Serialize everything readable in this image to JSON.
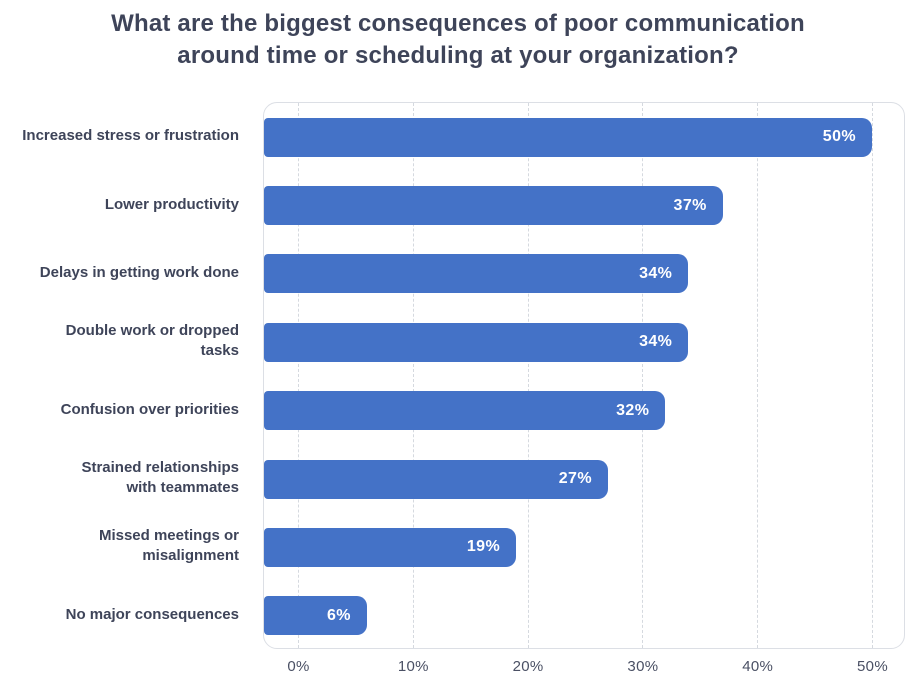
{
  "title": {
    "line1": "What are the biggest consequences of poor communication",
    "line2": "around time or scheduling at your organization?"
  },
  "chart_data": {
    "type": "bar",
    "orientation": "horizontal",
    "title": "What are the biggest consequences of poor communication around time or scheduling at your organization?",
    "categories": [
      "Increased stress or frustration",
      "Lower productivity",
      "Delays in getting work done",
      "Double work or dropped tasks",
      "Confusion over priorities",
      "Strained relationships with teammates",
      "Missed meetings or misalignment",
      "No major consequences"
    ],
    "categories_display": [
      "Increased stress or frustration",
      "Lower productivity",
      "Delays in getting work done",
      "Double work or dropped\ntasks",
      "Confusion over priorities",
      "Strained relationships\nwith teammates",
      "Missed meetings or\nmisalignment",
      "No major consequences"
    ],
    "values": [
      50,
      37,
      34,
      34,
      32,
      27,
      19,
      6
    ],
    "value_labels": [
      "50%",
      "37%",
      "34%",
      "34%",
      "32%",
      "27%",
      "19%",
      "6%"
    ],
    "x_tick_values": [
      0,
      10,
      20,
      30,
      40,
      50
    ],
    "x_tick_labels": [
      "0%",
      "10%",
      "20%",
      "30%",
      "40%",
      "50%"
    ],
    "xlim": [
      0,
      53
    ],
    "ylabel": "",
    "xlabel": "",
    "grid": "vertical-dashed",
    "legend": "none",
    "colors": {
      "bar": "#4472C7",
      "bar_value_label": "#FFFFFF",
      "title_text": "#3E4459",
      "category_label": "#3E4459",
      "axis_label": "#4A5064",
      "gridline": "#D5D9DF",
      "plot_border": "#DCDFE5",
      "background": "#FFFFFF"
    }
  }
}
